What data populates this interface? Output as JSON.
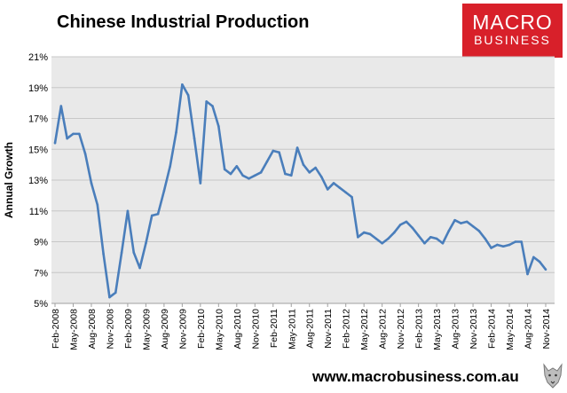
{
  "header": {
    "title": "Chinese Industrial Production",
    "logo_line1": "MACRO",
    "logo_line2": "BUSINESS"
  },
  "footer": {
    "url": "www.macrobusiness.com.au"
  },
  "colors": {
    "line": "#4a7ebb",
    "plot_bg": "#e9e9e9",
    "brand": "#d8202a"
  },
  "chart_data": {
    "type": "line",
    "title": "Chinese Industrial Production",
    "ylabel": "Annual Growth",
    "xlabel": "",
    "ylim": [
      5,
      21
    ],
    "yticks": [
      "5%",
      "7%",
      "9%",
      "11%",
      "13%",
      "15%",
      "17%",
      "19%",
      "21%"
    ],
    "xticks": [
      "Feb-2008",
      "May-2008",
      "Aug-2008",
      "Nov-2008",
      "Feb-2009",
      "May-2009",
      "Aug-2009",
      "Nov-2009",
      "Feb-2010",
      "May-2010",
      "Aug-2010",
      "Nov-2010",
      "Feb-2011",
      "May-2011",
      "Aug-2011",
      "Nov-2011",
      "Feb-2012",
      "May-2012",
      "Aug-2012",
      "Nov-2012",
      "Feb-2013",
      "May-2013",
      "Aug-2013",
      "Nov-2013",
      "Feb-2014",
      "May-2014",
      "Aug-2014",
      "Nov-2014"
    ],
    "grid": "horizontal",
    "series": [
      {
        "x": [
          "Feb-2008",
          "Mar-2008",
          "Apr-2008",
          "May-2008",
          "Jun-2008",
          "Jul-2008",
          "Aug-2008",
          "Sep-2008",
          "Oct-2008",
          "Nov-2008",
          "Dec-2008",
          "Jan-2009",
          "Feb-2009",
          "Mar-2009",
          "Apr-2009",
          "May-2009",
          "Jun-2009",
          "Jul-2009",
          "Aug-2009",
          "Sep-2009",
          "Oct-2009",
          "Nov-2009",
          "Dec-2009",
          "Jan-2010",
          "Feb-2010",
          "Mar-2010",
          "Apr-2010",
          "May-2010",
          "Jun-2010",
          "Jul-2010",
          "Aug-2010",
          "Sep-2010",
          "Oct-2010",
          "Nov-2010",
          "Dec-2010",
          "Jan-2011",
          "Feb-2011",
          "Mar-2011",
          "Apr-2011",
          "May-2011",
          "Jun-2011",
          "Jul-2011",
          "Aug-2011",
          "Sep-2011",
          "Oct-2011",
          "Nov-2011",
          "Dec-2011",
          "Jan-2012",
          "Feb-2012",
          "Mar-2012",
          "Apr-2012",
          "May-2012",
          "Jun-2012",
          "Jul-2012",
          "Aug-2012",
          "Sep-2012",
          "Oct-2012",
          "Nov-2012",
          "Dec-2012",
          "Jan-2013",
          "Feb-2013",
          "Mar-2013",
          "Apr-2013",
          "May-2013",
          "Jun-2013",
          "Jul-2013",
          "Aug-2013",
          "Sep-2013",
          "Oct-2013",
          "Nov-2013",
          "Dec-2013",
          "Jan-2014",
          "Feb-2014",
          "Mar-2014",
          "Apr-2014",
          "May-2014",
          "Jun-2014",
          "Jul-2014",
          "Aug-2014",
          "Sep-2014",
          "Oct-2014",
          "Nov-2014"
        ],
        "values": [
          15.4,
          17.8,
          15.7,
          16.0,
          16.0,
          14.7,
          12.8,
          11.4,
          8.2,
          5.4,
          5.7,
          8.3,
          11.0,
          8.3,
          7.3,
          8.9,
          10.7,
          10.8,
          12.3,
          13.9,
          16.1,
          19.2,
          18.5,
          15.7,
          12.8,
          18.1,
          17.8,
          16.5,
          13.7,
          13.4,
          13.9,
          13.3,
          13.1,
          13.3,
          13.5,
          14.2,
          14.9,
          14.8,
          13.4,
          13.3,
          15.1,
          14.0,
          13.5,
          13.8,
          13.2,
          12.4,
          12.8,
          12.5,
          12.2,
          11.9,
          9.3,
          9.6,
          9.5,
          9.2,
          8.9,
          9.2,
          9.6,
          10.1,
          10.3,
          9.9,
          9.4,
          8.9,
          9.3,
          9.2,
          8.9,
          9.7,
          10.4,
          10.2,
          10.3,
          10.0,
          9.7,
          9.2,
          8.6,
          8.8,
          8.7,
          8.8,
          9.0,
          9.0,
          6.9,
          8.0,
          7.7,
          7.2
        ]
      }
    ]
  }
}
